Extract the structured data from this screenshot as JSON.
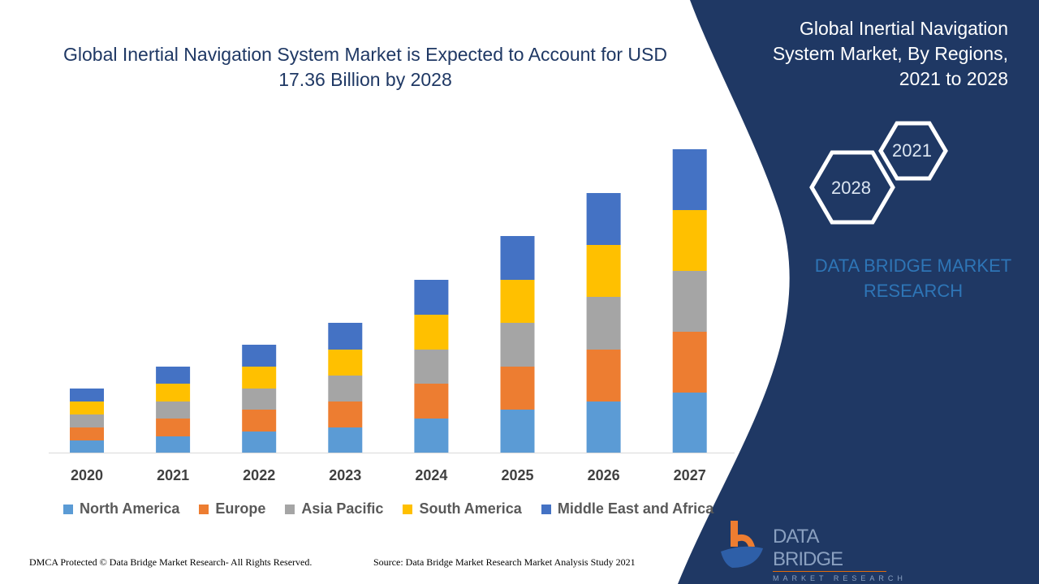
{
  "chart_data": {
    "type": "bar",
    "stacked": true,
    "title": "Global Inertial Navigation System Market is Expected to Account for USD 17.36 Billion by 2028",
    "categories": [
      "2020",
      "2021",
      "2022",
      "2023",
      "2024",
      "2025",
      "2026",
      "2027"
    ],
    "series": [
      {
        "name": "North America",
        "color": "#5b9bd5",
        "values": [
          15,
          20,
          26,
          31,
          42,
          53,
          63,
          74
        ]
      },
      {
        "name": "Europe",
        "color": "#ed7d31",
        "values": [
          16,
          22,
          27,
          32,
          43,
          53,
          64,
          75
        ]
      },
      {
        "name": "Asia Pacific",
        "color": "#a5a5a5",
        "values": [
          16,
          21,
          26,
          32,
          42,
          54,
          65,
          75
        ]
      },
      {
        "name": "South America",
        "color": "#ffc000",
        "values": [
          16,
          22,
          27,
          32,
          43,
          53,
          64,
          75
        ]
      },
      {
        "name": "Middle East and Africa",
        "color": "#4472c4",
        "values": [
          16,
          21,
          27,
          33,
          43,
          54,
          64,
          75
        ]
      }
    ],
    "ylim": [
      0,
      400
    ],
    "yaxis_visible": false,
    "grid": false,
    "legend": "bottom"
  },
  "side": {
    "title": "Global Inertial Navigation System Market, By Regions, 2021 to 2028",
    "hex_a": "2021",
    "hex_b": "2028",
    "brand": "DATA BRIDGE MARKET RESEARCH",
    "panel_color": "#1f3864"
  },
  "footer": {
    "left": "DMCA Protected © Data Bridge Market Research- All Rights Reserved.",
    "source": "Source: Data Bridge Market Research Market Analysis Study 2021"
  },
  "logo": {
    "line1": "DATA BRIDGE",
    "line2": "MARKET RESEARCH"
  }
}
